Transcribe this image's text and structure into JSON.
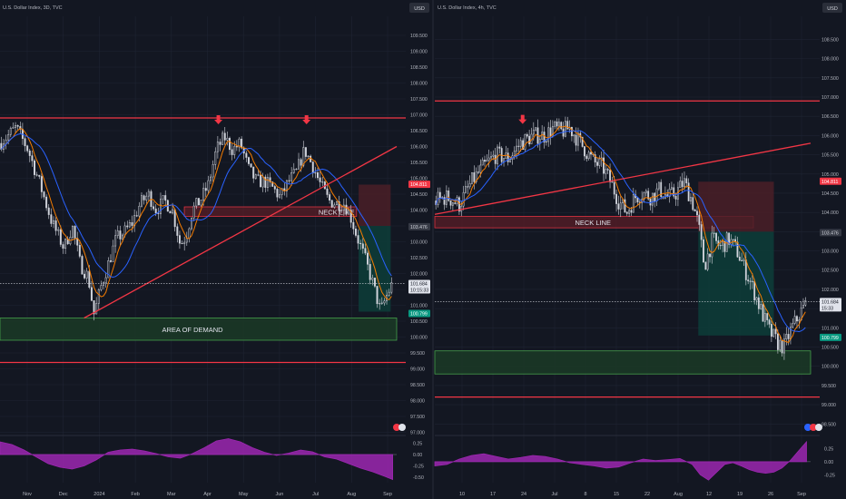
{
  "colors": {
    "background": "#131722",
    "grid": "#1f2433",
    "axis_text": "#b2b5be",
    "candle": "#d1d4dc",
    "red_line": "#f23645",
    "ma_orange": "#f57c00",
    "ma_blue": "#2962ff",
    "demand_fill": "#1b3a26",
    "demand_border": "#4caf50",
    "neck_fill": "#5a1e27",
    "stop_fill": "#4a1f27",
    "target_fill": "#0d3b37",
    "osc_fill": "#9c27b0",
    "price_badge": "#e0e3eb",
    "price_mid_badge": "#363a45",
    "price_low_badge": "#089981",
    "price_high_badge": "#f23645"
  },
  "chart_data": [
    {
      "type": "candlestick",
      "title": "U.S. Dollar Index, 3D, TVC",
      "currency_label": "USD",
      "x_ticks": [
        "Nov",
        "Dec",
        "2024",
        "Feb",
        "Mar",
        "Apr",
        "May",
        "Jun",
        "Jul",
        "Aug",
        "Sep"
      ],
      "y_ticks": [
        "97.000",
        "97.500",
        "98.000",
        "98.500",
        "99.000",
        "99.500",
        "100.000",
        "100.500",
        "101.000",
        "101.500",
        "102.000",
        "102.500",
        "103.000",
        "103.500",
        "104.000",
        "104.500",
        "105.000",
        "105.500",
        "106.000",
        "106.500",
        "107.000",
        "107.500",
        "108.000",
        "108.500",
        "109.000",
        "109.500"
      ],
      "ylim": [
        96.9,
        110.1
      ],
      "price_path": [
        [
          0,
          106.1
        ],
        [
          4,
          106.6
        ],
        [
          7,
          105.9
        ],
        [
          10,
          104.8
        ],
        [
          13,
          103.6
        ],
        [
          16,
          102.8
        ],
        [
          18,
          103.5
        ],
        [
          20,
          102.3
        ],
        [
          22,
          101.9
        ],
        [
          23.5,
          100.7
        ],
        [
          25,
          101.5
        ],
        [
          27,
          102.3
        ],
        [
          29,
          103.1
        ],
        [
          31,
          103.3
        ],
        [
          33,
          103.6
        ],
        [
          35,
          104.2
        ],
        [
          37,
          104.5
        ],
        [
          39,
          104.0
        ],
        [
          41,
          104.3
        ],
        [
          43,
          104.0
        ],
        [
          45,
          102.9
        ],
        [
          46.5,
          103.2
        ],
        [
          48,
          104.0
        ],
        [
          50,
          104.3
        ],
        [
          52,
          104.8
        ],
        [
          54,
          105.9
        ],
        [
          56,
          106.3
        ],
        [
          58,
          105.9
        ],
        [
          60,
          106.1
        ],
        [
          62,
          105.3
        ],
        [
          64,
          104.9
        ],
        [
          66,
          104.9
        ],
        [
          68,
          104.7
        ],
        [
          70,
          104.4
        ],
        [
          72,
          104.9
        ],
        [
          74,
          105.2
        ],
        [
          76,
          105.9
        ],
        [
          78,
          105.4
        ],
        [
          80,
          104.8
        ],
        [
          82,
          104.3
        ],
        [
          84,
          104.2
        ],
        [
          86,
          104.2
        ],
        [
          87.5,
          103.8
        ],
        [
          89,
          103.2
        ],
        [
          91,
          102.5
        ],
        [
          93,
          101.7
        ],
        [
          95,
          100.8
        ],
        [
          96.5,
          101.3
        ],
        [
          98,
          101.7
        ]
      ],
      "xlim": [
        0,
        99
      ],
      "lines": [
        {
          "kind": "horizontal",
          "price": 106.9
        },
        {
          "kind": "horizontal",
          "price": 99.2
        },
        {
          "kind": "trendline",
          "from": [
            21,
            100.6
          ],
          "to": [
            99,
            106.0
          ]
        }
      ],
      "zones": [
        {
          "name": "demand",
          "from": [
            0,
            100.6
          ],
          "to": [
            99,
            99.9
          ],
          "label": "AREA OF DEMAND"
        },
        {
          "name": "neck",
          "from": [
            46,
            104.1
          ],
          "to": [
            89,
            103.8
          ],
          "label": "NECK LINE"
        },
        {
          "name": "stop",
          "from": [
            89.5,
            104.8
          ],
          "to": [
            97.5,
            103.5
          ]
        },
        {
          "name": "target",
          "from": [
            89.5,
            103.5
          ],
          "to": [
            97.5,
            100.8
          ]
        }
      ],
      "arrows": [
        [
          54.5,
          106.7
        ],
        [
          76.5,
          106.7
        ]
      ],
      "price_labels": [
        {
          "text": "104.811",
          "price": 104.811,
          "style": "high"
        },
        {
          "text": "103.476",
          "price": 103.476,
          "style": "mid"
        },
        {
          "text": "101.684",
          "price": 101.684,
          "style": "current",
          "sub": "10:15:33"
        },
        {
          "text": "100.799",
          "price": 100.799,
          "style": "low"
        }
      ],
      "current_price": 101.684,
      "oscillator": {
        "y_ticks": [
          "0.50",
          "0.25",
          "0.00",
          "-0.25",
          "-0.50"
        ],
        "ylim": [
          -0.62,
          0.42
        ],
        "values": [
          [
            0,
            0.28
          ],
          [
            3,
            0.22
          ],
          [
            6,
            0.1
          ],
          [
            9,
            -0.05
          ],
          [
            12,
            -0.2
          ],
          [
            15,
            -0.28
          ],
          [
            18,
            -0.32
          ],
          [
            21,
            -0.25
          ],
          [
            24,
            -0.12
          ],
          [
            27,
            0.05
          ],
          [
            30,
            0.1
          ],
          [
            33,
            0.12
          ],
          [
            36,
            0.08
          ],
          [
            39,
            0.02
          ],
          [
            42,
            -0.05
          ],
          [
            45,
            -0.08
          ],
          [
            48,
            0.02
          ],
          [
            51,
            0.15
          ],
          [
            54,
            0.3
          ],
          [
            57,
            0.35
          ],
          [
            60,
            0.28
          ],
          [
            63,
            0.15
          ],
          [
            66,
            0.05
          ],
          [
            69,
            -0.02
          ],
          [
            72,
            0.03
          ],
          [
            75,
            0.1
          ],
          [
            78,
            0.06
          ],
          [
            81,
            -0.05
          ],
          [
            84,
            -0.1
          ],
          [
            87,
            -0.2
          ],
          [
            90,
            -0.3
          ],
          [
            93,
            -0.38
          ],
          [
            96,
            -0.48
          ],
          [
            98,
            -0.55
          ]
        ]
      }
    },
    {
      "type": "candlestick",
      "title": "U.S. Dollar Index, 4h, TVC",
      "currency_label": "USD",
      "x_ticks": [
        "10",
        "17",
        "24",
        "Jul",
        "8",
        "15",
        "22",
        "Aug",
        "12",
        "19",
        "26",
        "Sep"
      ],
      "y_ticks": [
        "98.500",
        "99.000",
        "99.500",
        "100.000",
        "100.500",
        "101.000",
        "101.500",
        "102.000",
        "102.500",
        "103.000",
        "103.500",
        "104.000",
        "104.500",
        "105.000",
        "105.500",
        "106.000",
        "106.500",
        "107.000",
        "107.500",
        "108.000",
        "108.500"
      ],
      "ylim": [
        98.2,
        109.1
      ],
      "price_path": [
        [
          0,
          104.3
        ],
        [
          3,
          104.4
        ],
        [
          6,
          104.2
        ],
        [
          9,
          104.8
        ],
        [
          12,
          105.2
        ],
        [
          15,
          105.5
        ],
        [
          18,
          105.4
        ],
        [
          21,
          105.8
        ],
        [
          24,
          106.0
        ],
        [
          27,
          106.0
        ],
        [
          29,
          106.2
        ],
        [
          31,
          106.1
        ],
        [
          33,
          106.2
        ],
        [
          35,
          105.9
        ],
        [
          37,
          105.6
        ],
        [
          39,
          105.3
        ],
        [
          41,
          105.2
        ],
        [
          43,
          104.8
        ],
        [
          45,
          104.3
        ],
        [
          47,
          104.0
        ],
        [
          49,
          104.4
        ],
        [
          51,
          104.5
        ],
        [
          53,
          104.4
        ],
        [
          55,
          104.6
        ],
        [
          57,
          104.4
        ],
        [
          59,
          104.5
        ],
        [
          61,
          104.8
        ],
        [
          63,
          104.3
        ],
        [
          64.5,
          103.7
        ],
        [
          66,
          102.6
        ],
        [
          68,
          103.3
        ],
        [
          70,
          103.1
        ],
        [
          72,
          103.3
        ],
        [
          74,
          103.0
        ],
        [
          76,
          102.5
        ],
        [
          78,
          102.0
        ],
        [
          80,
          101.4
        ],
        [
          82,
          100.9
        ],
        [
          84,
          100.6
        ],
        [
          85.5,
          100.5
        ],
        [
          87,
          100.9
        ],
        [
          89,
          101.3
        ],
        [
          91,
          101.65
        ]
      ],
      "xlim": [
        0,
        92
      ],
      "lines": [
        {
          "kind": "horizontal",
          "price": 106.9
        },
        {
          "kind": "horizontal",
          "price": 99.2
        },
        {
          "kind": "trendline",
          "from": [
            0,
            103.95
          ],
          "to": [
            92,
            105.8
          ]
        }
      ],
      "zones": [
        {
          "name": "demand",
          "from": [
            0,
            100.4
          ],
          "to": [
            92,
            99.8
          ],
          "label": ""
        },
        {
          "name": "neck",
          "from": [
            0,
            103.9
          ],
          "to": [
            78,
            103.6
          ],
          "label": "NECK LINE"
        },
        {
          "name": "stop",
          "from": [
            64.5,
            104.8
          ],
          "to": [
            83,
            103.5
          ]
        },
        {
          "name": "target",
          "from": [
            64.5,
            103.5
          ],
          "to": [
            83,
            100.8
          ]
        }
      ],
      "arrows": [
        [
          21.5,
          106.3
        ]
      ],
      "price_labels": [
        {
          "text": "104.811",
          "price": 104.811,
          "style": "high"
        },
        {
          "text": "103.476",
          "price": 103.476,
          "style": "mid"
        },
        {
          "text": "101.684",
          "price": 101.684,
          "style": "current",
          "sub": "15:33"
        },
        {
          "text": "100.799",
          "price": 100.799,
          "style": "low"
        }
      ],
      "current_price": 101.684,
      "oscillator": {
        "y_ticks": [
          "0.50",
          "0.25",
          "0.00",
          "-0.25"
        ],
        "ylim": [
          -0.4,
          0.5
        ],
        "values": [
          [
            0,
            -0.08
          ],
          [
            3,
            -0.05
          ],
          [
            6,
            0.05
          ],
          [
            9,
            0.12
          ],
          [
            12,
            0.15
          ],
          [
            15,
            0.1
          ],
          [
            18,
            0.05
          ],
          [
            21,
            0.08
          ],
          [
            24,
            0.12
          ],
          [
            27,
            0.1
          ],
          [
            30,
            0.05
          ],
          [
            33,
            -0.02
          ],
          [
            36,
            -0.05
          ],
          [
            39,
            -0.08
          ],
          [
            42,
            -0.12
          ],
          [
            45,
            -0.1
          ],
          [
            48,
            -0.02
          ],
          [
            51,
            0.05
          ],
          [
            54,
            0.02
          ],
          [
            57,
            0.04
          ],
          [
            60,
            0.06
          ],
          [
            63,
            -0.05
          ],
          [
            65,
            -0.25
          ],
          [
            67,
            -0.35
          ],
          [
            69,
            -0.2
          ],
          [
            71,
            -0.05
          ],
          [
            73,
            -0.02
          ],
          [
            75,
            -0.08
          ],
          [
            77,
            -0.15
          ],
          [
            79,
            -0.2
          ],
          [
            81,
            -0.22
          ],
          [
            83,
            -0.2
          ],
          [
            85,
            -0.12
          ],
          [
            87,
            0.02
          ],
          [
            89,
            0.2
          ],
          [
            91,
            0.38
          ]
        ]
      }
    }
  ]
}
